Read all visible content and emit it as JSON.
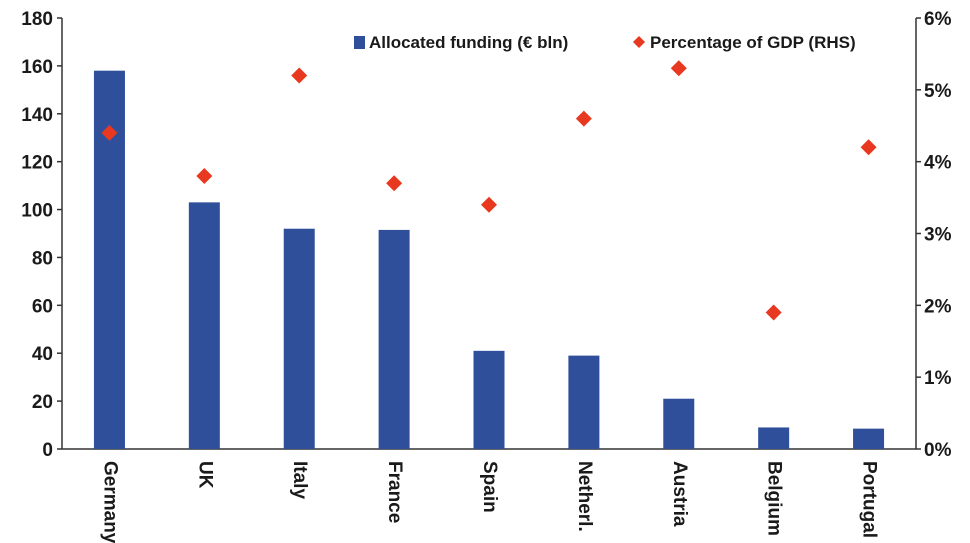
{
  "chart_data": {
    "type": "bar",
    "categories": [
      "Germany",
      "UK",
      "Italy",
      "France",
      "Spain",
      "Netherl.",
      "Austria",
      "Belgium",
      "Portugal"
    ],
    "series": [
      {
        "name": "Allocated funding (€ bln)",
        "type": "bar",
        "axis": "left",
        "color": "#2f4f9a",
        "values": [
          158,
          103,
          92,
          91.5,
          41,
          39,
          21,
          9,
          8.5
        ]
      },
      {
        "name": "Percentage of GDP (RHS)",
        "type": "scatter",
        "marker": "diamond",
        "axis": "right",
        "color": "#e8381f",
        "values": [
          4.4,
          3.8,
          5.2,
          3.7,
          3.4,
          4.6,
          5.3,
          1.9,
          4.2
        ]
      }
    ],
    "y_left": {
      "ylim": [
        0,
        180
      ],
      "ticks": [
        "0",
        "20",
        "40",
        "60",
        "80",
        "100",
        "120",
        "140",
        "160",
        "180"
      ]
    },
    "y_right": {
      "ylim": [
        0,
        6
      ],
      "ticks": [
        "0%",
        "1%",
        "2%",
        "3%",
        "4%",
        "5%",
        "6%"
      ]
    },
    "legend": {
      "placement": "top-right",
      "items": [
        "Allocated funding (€ bln)",
        "Percentage of GDP (RHS)"
      ]
    },
    "grid": false
  }
}
